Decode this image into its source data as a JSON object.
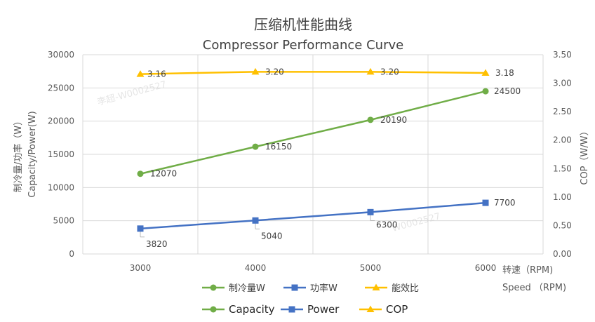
{
  "chart_data": {
    "type": "line",
    "title": "压缩机性能曲线",
    "subtitle": "Compressor Performance Curve",
    "categories": [
      "3000",
      "4000",
      "5000",
      "6000"
    ],
    "x": [
      3000,
      4000,
      5000,
      6000
    ],
    "xlabel_cn": "转速（RPM)",
    "xlabel_en": "Speed （RPM)",
    "ylabel_cn": "制冷量/功率（W）",
    "ylabel_en": "Capacity/Power(W)",
    "y2label": "COP（W/W）",
    "ylim": [
      0,
      30000
    ],
    "y_ticks": [
      "0",
      "5000",
      "10000",
      "15000",
      "20000",
      "25000",
      "30000"
    ],
    "y2lim": [
      0,
      3.5
    ],
    "y2_ticks": [
      "0.00",
      "0.50",
      "1.00",
      "1.50",
      "2.00",
      "2.50",
      "3.00",
      "3.50"
    ],
    "grid": true,
    "legend_placement": "bottom",
    "series": [
      {
        "key": "capacity",
        "name": "制冷量W",
        "name_en": "Capacity",
        "axis": "left",
        "marker": "circle",
        "color": "#70AD47",
        "values": [
          12070,
          16150,
          20190,
          24500
        ],
        "labels": [
          "12070",
          "16150",
          "20190",
          "24500"
        ]
      },
      {
        "key": "power",
        "name": "功率W",
        "name_en": "Power",
        "axis": "left",
        "marker": "square",
        "color": "#4472C4",
        "values": [
          3820,
          5040,
          6300,
          7700
        ],
        "labels": [
          "3820",
          "5040",
          "6300",
          "7700"
        ]
      },
      {
        "key": "cop",
        "name": "能效比",
        "name_en": "COP",
        "axis": "right",
        "marker": "triangle",
        "color": "#FFC000",
        "values": [
          3.16,
          3.2,
          3.2,
          3.18
        ],
        "labels": [
          "3.16",
          "3.20",
          "3.20",
          "3.18"
        ]
      }
    ]
  },
  "watermark": [
    "李超-W0002527",
    "W0002527"
  ]
}
